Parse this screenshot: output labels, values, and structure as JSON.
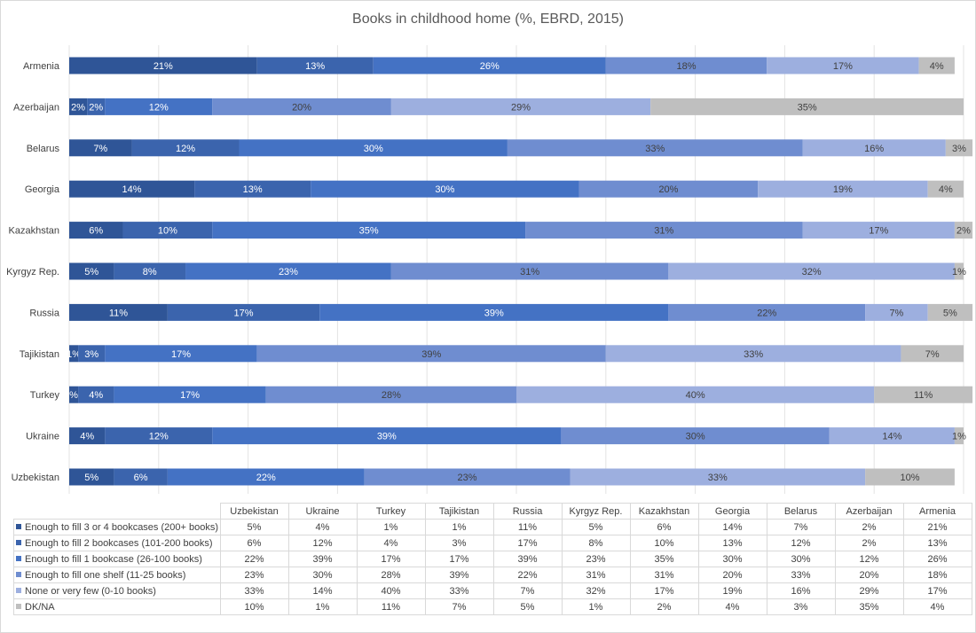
{
  "chart_data": {
    "type": "bar",
    "orientation": "horizontal",
    "stacked": "percent",
    "title": "Books in childhood home (%, EBRD, 2015)",
    "categories": [
      "Armenia",
      "Azerbaijan",
      "Belarus",
      "Georgia",
      "Kazakhstan",
      "Kyrgyz Rep.",
      "Russia",
      "Tajikistan",
      "Turkey",
      "Ukraine",
      "Uzbekistan"
    ],
    "series": [
      {
        "name": "Enough to fill 3 or 4 bookcases (200+ books)",
        "color": "#2f5597",
        "values": [
          21,
          2,
          7,
          14,
          6,
          5,
          11,
          1,
          1,
          4,
          5
        ]
      },
      {
        "name": "Enough to fill 2 bookcases (101-200 books)",
        "color": "#3b64ad",
        "values": [
          13,
          2,
          12,
          13,
          10,
          8,
          17,
          3,
          4,
          12,
          6
        ]
      },
      {
        "name": "Enough to fill 1 bookcase (26-100 books)",
        "color": "#4472c4",
        "values": [
          26,
          12,
          30,
          30,
          35,
          23,
          39,
          17,
          17,
          39,
          22
        ]
      },
      {
        "name": "Enough to fill one shelf (11-25 books)",
        "color": "#6f8dd0",
        "values": [
          18,
          20,
          33,
          20,
          31,
          31,
          22,
          39,
          28,
          30,
          23
        ]
      },
      {
        "name": "None or very few (0-10 books)",
        "color": "#9dafdf",
        "values": [
          17,
          29,
          16,
          19,
          17,
          32,
          7,
          33,
          40,
          14,
          33
        ]
      },
      {
        "name": "DK/NA",
        "color": "#bfbfbf",
        "values": [
          4,
          35,
          3,
          4,
          2,
          1,
          5,
          7,
          11,
          1,
          10
        ]
      }
    ],
    "bar_labels": [
      [
        "21%",
        "13%",
        "26%",
        "18%",
        "17%",
        "4%"
      ],
      [
        "2%",
        "2%",
        "12%",
        "20%",
        "29%",
        "35%"
      ],
      [
        "7%",
        "12%",
        "30%",
        "33%",
        "16%",
        "3%"
      ],
      [
        "14%",
        "13%",
        "30%",
        "20%",
        "19%",
        "4%"
      ],
      [
        "6%",
        "10%",
        "35%",
        "31%",
        "17%",
        "2%"
      ],
      [
        "5%",
        "8%",
        "23%",
        "31%",
        "32%",
        "1%"
      ],
      [
        "11%",
        "17%",
        "39%",
        "22%",
        "7%",
        "5%"
      ],
      [
        "1%",
        "3%",
        "17%",
        "39%",
        "33%",
        "7%"
      ],
      [
        "%",
        "4%",
        "17%",
        "28%",
        "40%",
        "11%"
      ],
      [
        "4%",
        "12%",
        "39%",
        "30%",
        "14%",
        "1%"
      ],
      [
        "5%",
        "6%",
        "22%",
        "23%",
        "33%",
        "10%"
      ]
    ],
    "xlim": [
      0,
      100
    ],
    "grid": "vertical",
    "legend": "data-table-below",
    "data_table": {
      "columns": [
        "Uzbekistan",
        "Ukraine",
        "Turkey",
        "Tajikistan",
        "Russia",
        "Kyrgyz Rep.",
        "Kazakhstan",
        "Georgia",
        "Belarus",
        "Azerbaijan",
        "Armenia"
      ],
      "rows": [
        [
          "5%",
          "4%",
          "1%",
          "1%",
          "11%",
          "5%",
          "6%",
          "14%",
          "7%",
          "2%",
          "21%"
        ],
        [
          "6%",
          "12%",
          "4%",
          "3%",
          "17%",
          "8%",
          "10%",
          "13%",
          "12%",
          "2%",
          "13%"
        ],
        [
          "22%",
          "39%",
          "17%",
          "17%",
          "39%",
          "23%",
          "35%",
          "30%",
          "30%",
          "12%",
          "26%"
        ],
        [
          "23%",
          "30%",
          "28%",
          "39%",
          "22%",
          "31%",
          "31%",
          "20%",
          "33%",
          "20%",
          "18%"
        ],
        [
          "33%",
          "14%",
          "40%",
          "33%",
          "7%",
          "32%",
          "17%",
          "19%",
          "16%",
          "29%",
          "17%"
        ],
        [
          "10%",
          "1%",
          "11%",
          "7%",
          "5%",
          "1%",
          "2%",
          "4%",
          "3%",
          "35%",
          "4%"
        ]
      ]
    }
  }
}
